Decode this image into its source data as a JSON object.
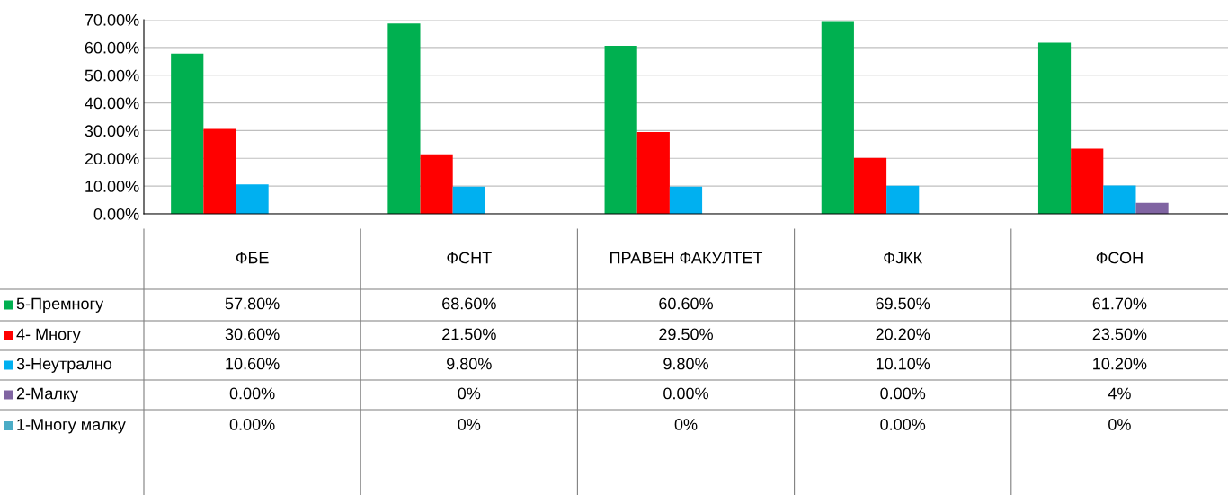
{
  "chart_data": {
    "type": "bar",
    "categories": [
      "ФБЕ",
      "ФСНТ",
      "ПРАВЕН ФАКУЛТЕТ",
      "ФЈКК",
      "ФСОН"
    ],
    "series": [
      {
        "name": "5-Премногу",
        "color": "#00b050",
        "values": [
          57.8,
          68.6,
          60.6,
          69.5,
          61.7
        ],
        "value_labels": [
          "57.80%",
          "68.60%",
          "60.60%",
          "69.50%",
          "61.70%"
        ]
      },
      {
        "name": "4- Многу",
        "color": "#ff0000",
        "values": [
          30.6,
          21.5,
          29.5,
          20.2,
          23.5
        ],
        "value_labels": [
          "30.60%",
          "21.50%",
          "29.50%",
          "20.20%",
          "23.50%"
        ]
      },
      {
        "name": "3-Неутрално",
        "color": "#00b0f0",
        "values": [
          10.6,
          9.8,
          9.8,
          10.1,
          10.2
        ],
        "value_labels": [
          "10.60%",
          "9.80%",
          "9.80%",
          "10.10%",
          "10.20%"
        ]
      },
      {
        "name": "2-Малку",
        "color": "#8064a2",
        "values": [
          0,
          0,
          0,
          0,
          4
        ],
        "value_labels": [
          "0.00%",
          "0%",
          "0.00%",
          "0.00%",
          "4%"
        ]
      },
      {
        "name": "1-Многу малку",
        "color": "#4bacc6",
        "values": [
          0,
          0,
          0,
          0,
          0
        ],
        "value_labels": [
          "0.00%",
          "0%",
          "0%",
          "0.00%",
          "0%"
        ]
      }
    ],
    "ylim": [
      0,
      70
    ],
    "yticks": [
      {
        "value": 0,
        "label": "0.00%"
      },
      {
        "value": 10,
        "label": "10.00%"
      },
      {
        "value": 20,
        "label": "20.00%"
      },
      {
        "value": 30,
        "label": "30.00%"
      },
      {
        "value": 40,
        "label": "40.00%"
      },
      {
        "value": 50,
        "label": "50.00%"
      },
      {
        "value": 60,
        "label": "60.00%"
      },
      {
        "value": 70,
        "label": "70.00%"
      }
    ],
    "grid": "y",
    "legend": "bottom left"
  }
}
